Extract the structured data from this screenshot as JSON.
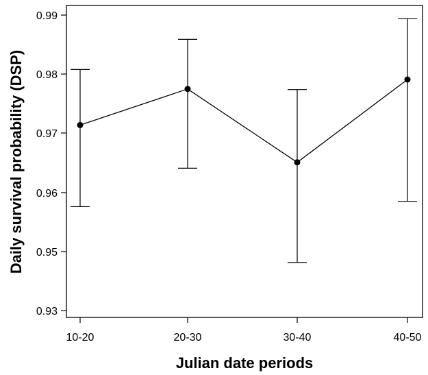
{
  "chart_data": {
    "type": "line",
    "title": "",
    "xlabel": "Julian date periods",
    "ylabel": "Daily survival probability (DSP)",
    "categories": [
      "10-20",
      "20-30",
      "30-40",
      "40-50"
    ],
    "series": [
      {
        "values": [
          0.9714,
          0.9775,
          0.9651,
          0.9791
        ],
        "error_low": [
          0.9576,
          0.9641,
          0.9463,
          0.9585
        ],
        "error_high": [
          0.9808,
          0.9859,
          0.9774,
          0.9894
        ]
      }
    ],
    "yticks": [
      0.93,
      0.95,
      0.96,
      0.97,
      0.98,
      0.99
    ],
    "ytick_labels": [
      "0.93",
      "0.95",
      "0.96",
      "0.97",
      "0.98",
      "0.99"
    ],
    "ylim": [
      0.93,
      0.99
    ],
    "grid": false,
    "legend": "none",
    "colors": {
      "line": "#000000",
      "marker": "#000000",
      "frame": "#000000"
    }
  }
}
